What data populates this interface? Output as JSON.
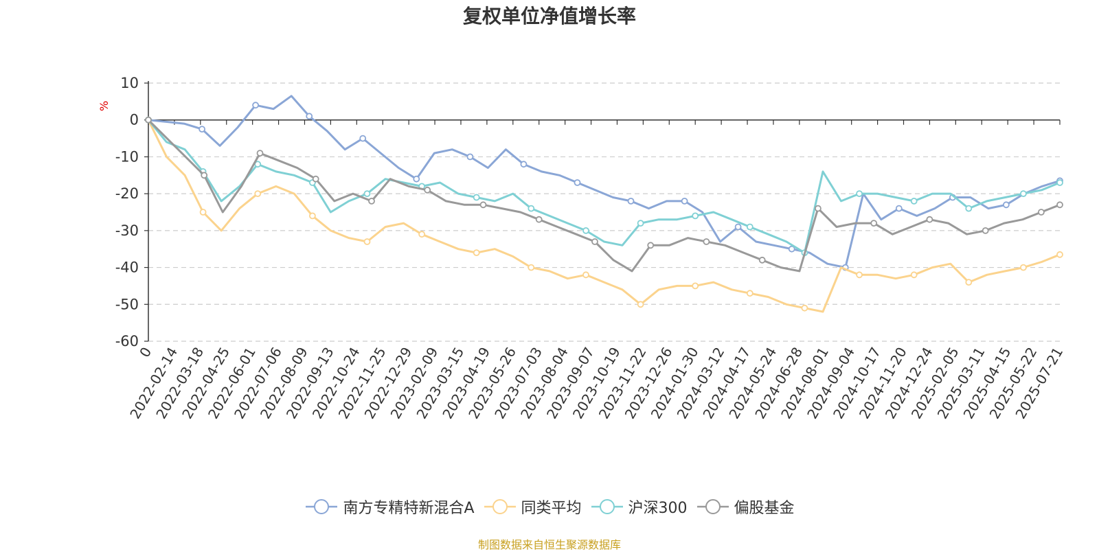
{
  "chart_data": {
    "type": "line",
    "title": "复权单位净值增长率",
    "ylabel": "%",
    "ylim": [
      -60,
      10
    ],
    "yticks": [
      10,
      0,
      -10,
      -20,
      -30,
      -40,
      -50,
      -60
    ],
    "xlabels": [
      "0",
      "2022-02-14",
      "2022-03-18",
      "2022-04-25",
      "2022-06-01",
      "2022-07-06",
      "2022-08-09",
      "2022-09-13",
      "2022-10-24",
      "2022-11-25",
      "2022-12-29",
      "2023-02-09",
      "2023-03-15",
      "2023-04-19",
      "2023-05-26",
      "2023-07-03",
      "2023-08-04",
      "2023-09-07",
      "2023-10-19",
      "2023-11-22",
      "2023-12-26",
      "2024-01-30",
      "2024-03-12",
      "2024-04-17",
      "2024-05-24",
      "2024-06-28",
      "2024-08-01",
      "2024-09-04",
      "2024-10-17",
      "2024-11-20",
      "2024-12-24",
      "2025-02-05",
      "2025-03-11",
      "2025-04-15",
      "2025-05-22",
      "2025-07-21"
    ],
    "grid": "horizontal-dashed",
    "legend": "bottom-center",
    "source": "制图数据来自恒生聚源数据库",
    "series": [
      {
        "name": "南方专精特新混合A",
        "color": "#8aa6d6",
        "values": [
          0,
          -0.5,
          -1,
          -2.5,
          -7,
          -2,
          4,
          3,
          6.5,
          1,
          -3,
          -8,
          -5,
          -9,
          -13,
          -16,
          -9,
          -8,
          -10,
          -13,
          -8,
          -12,
          -14,
          -15,
          -17,
          -19,
          -21,
          -22,
          -24,
          -22,
          -22,
          -25,
          -33,
          -29,
          -33,
          -34,
          -35,
          -36,
          -39,
          -40,
          -20,
          -27,
          -24,
          -26,
          -24,
          -21,
          -21,
          -24,
          -23,
          -20,
          -18,
          -16.5
        ]
      },
      {
        "name": "同类平均",
        "color": "#fbd38d",
        "values": [
          0,
          -10,
          -15,
          -25,
          -30,
          -24,
          -20,
          -18,
          -20,
          -26,
          -30,
          -32,
          -33,
          -29,
          -28,
          -31,
          -33,
          -35,
          -36,
          -35,
          -37,
          -40,
          -41,
          -43,
          -42,
          -44,
          -46,
          -50,
          -46,
          -45,
          -45,
          -44,
          -46,
          -47,
          -48,
          -50,
          -51,
          -52,
          -40,
          -42,
          -42,
          -43,
          -42,
          -40,
          -39,
          -44,
          -42,
          -41,
          -40,
          -38.5,
          -36.5
        ]
      },
      {
        "name": "沪深300",
        "color": "#7fd0d4",
        "values": [
          0,
          -6,
          -8,
          -14,
          -22,
          -18,
          -12,
          -14,
          -15,
          -17,
          -25,
          -22,
          -20,
          -16,
          -17,
          -18,
          -17,
          -20,
          -21,
          -22,
          -20,
          -24,
          -26,
          -28,
          -30,
          -33,
          -34,
          -28,
          -27,
          -27,
          -26,
          -25,
          -27,
          -29,
          -31,
          -33,
          -36,
          -14,
          -22,
          -20,
          -20,
          -21,
          -22,
          -20,
          -20,
          -24,
          -22,
          -21,
          -20,
          -19,
          -17
        ]
      },
      {
        "name": "偏股基金",
        "color": "#999999",
        "values": [
          0,
          -5,
          -10,
          -15,
          -25,
          -18,
          -9,
          -11,
          -13,
          -16,
          -22,
          -20,
          -22,
          -16,
          -18,
          -19,
          -22,
          -23,
          -23,
          -24,
          -25,
          -27,
          -29,
          -31,
          -33,
          -38,
          -41,
          -34,
          -34,
          -32,
          -33,
          -34,
          -36,
          -38,
          -40,
          -41,
          -24,
          -29,
          -28,
          -28,
          -31,
          -29,
          -27,
          -28,
          -31,
          -30,
          -28,
          -27,
          -25,
          -23
        ]
      }
    ]
  }
}
